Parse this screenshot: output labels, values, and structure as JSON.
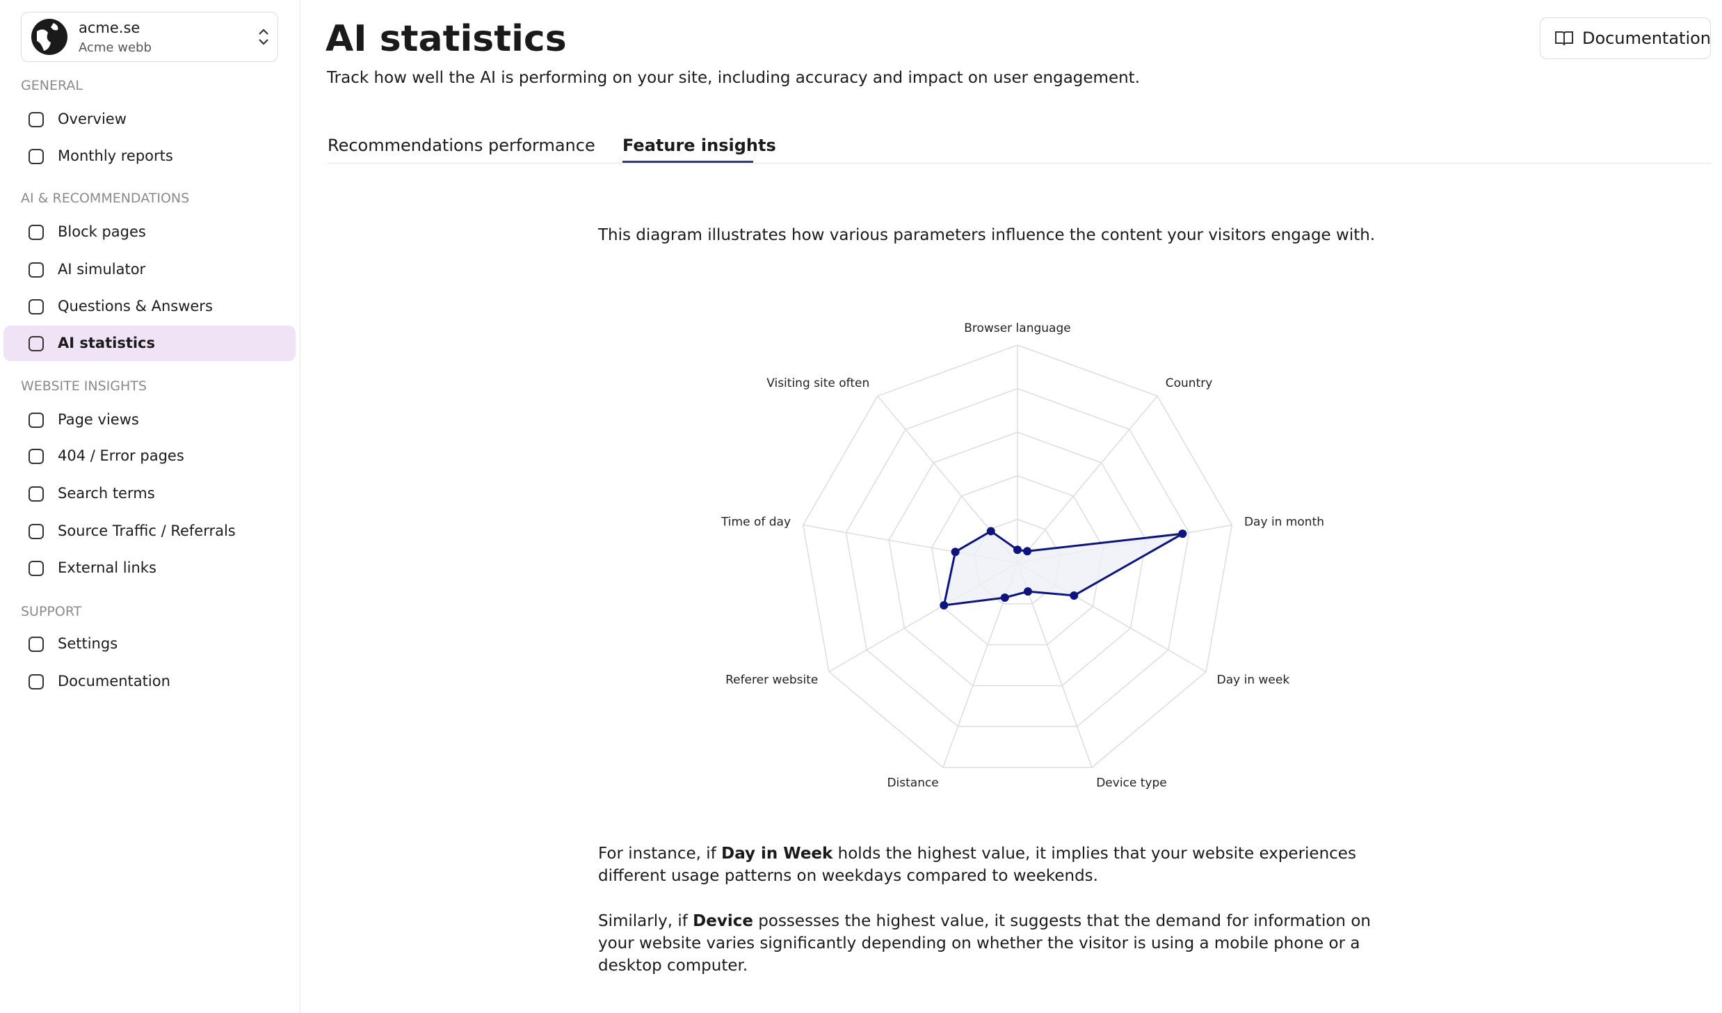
{
  "sidebar": {
    "org_name": "acme.se",
    "org_sub": "Acme webb",
    "sections": [
      {
        "title": "GENERAL",
        "items": [
          "Overview",
          "Monthly reports"
        ]
      },
      {
        "title": "AI & RECOMMENDATIONS",
        "items": [
          "Block pages",
          "AI simulator",
          "Questions & Answers",
          "AI statistics"
        ]
      },
      {
        "title": "WEBSITE INSIGHTS",
        "items": [
          "Page views",
          "404 / Error pages",
          "Search terms",
          "Source Traffic / Referrals",
          "External links"
        ]
      },
      {
        "title": "SUPPORT",
        "items": [
          "Settings",
          "Documentation"
        ]
      }
    ]
  },
  "header": {
    "title": "AI statistics",
    "subtitle": "Track how well the AI is performing on your site, including accuracy and impact on user engagement.",
    "button": "Documentation"
  },
  "tabs": [
    "Recommendations performance",
    "Feature insights"
  ],
  "description": "This diagram illustrates how various parameters influence the content your visitors engage with.",
  "chart_data": {
    "type": "radar",
    "categories": [
      "Browser language",
      "Country",
      "Day in month",
      "Day in week",
      "Device type",
      "Distance",
      "Referer website",
      "Time of day",
      "Visiting site often"
    ],
    "values": [
      0.06,
      0.07,
      0.77,
      0.3,
      0.14,
      0.17,
      0.39,
      0.29,
      0.19
    ],
    "rlim": [
      0,
      1
    ],
    "rticks": [
      0.2,
      0.4,
      0.6,
      0.8,
      1
    ],
    "color": "#0d1480",
    "fill": "#eef0f8",
    "grid_color": "#dddddd"
  },
  "paragraphs": [
    [
      "For instance, if ",
      "Day in Week",
      " holds the highest value, it implies that your website experiences different usage patterns on weekdays compared to weekends."
    ],
    [
      "Similarly, if ",
      "Device",
      " possesses the highest value, it suggests that the demand for information on your website varies significantly depending on whether the visitor is using a mobile phone or a desktop computer."
    ]
  ]
}
